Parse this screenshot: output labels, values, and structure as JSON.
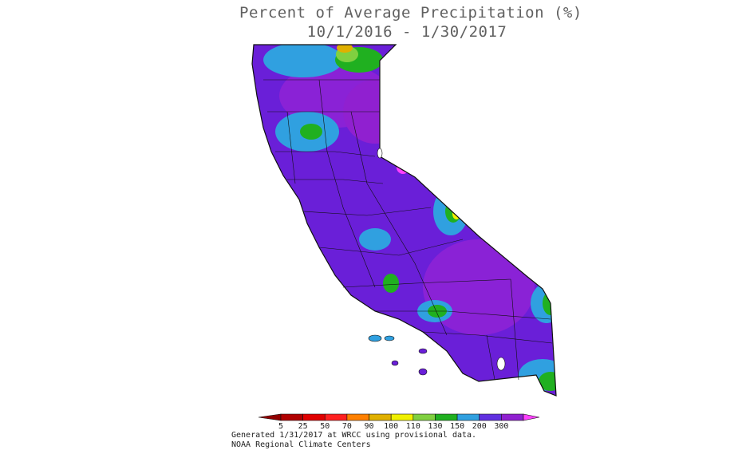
{
  "title": {
    "line1": "Percent of Average Precipitation (%)",
    "line2": "10/1/2016 - 1/30/2017"
  },
  "legend": {
    "bins": [
      {
        "label": "5",
        "color": "#b00000"
      },
      {
        "label": "25",
        "color": "#e00000"
      },
      {
        "label": "50",
        "color": "#ff2020"
      },
      {
        "label": "70",
        "color": "#ff8000"
      },
      {
        "label": "90",
        "color": "#e0b000"
      },
      {
        "label": "100",
        "color": "#f0f000"
      },
      {
        "label": "110",
        "color": "#80d040"
      },
      {
        "label": "130",
        "color": "#20b020"
      },
      {
        "label": "150",
        "color": "#30a0e0"
      },
      {
        "label": "200",
        "color": "#6030e0"
      },
      {
        "label": "300",
        "color": "#9020d0"
      }
    ],
    "low_arrow_color": "#900000",
    "high_arrow_color": "#ff40ff"
  },
  "footer": {
    "line1": "Generated 1/31/2017 at WRCC using provisional data.",
    "line2": "NOAA Regional Climate Centers"
  },
  "map_colors": {
    "base": "#6a1fd8",
    "darker": "#8a22d6",
    "blue": "#30a0e0",
    "green": "#20b020",
    "lightgreen": "#80d040",
    "yellow": "#f0f000",
    "orange": "#e0b000",
    "magenta": "#ff40ff",
    "border": "#101010"
  }
}
